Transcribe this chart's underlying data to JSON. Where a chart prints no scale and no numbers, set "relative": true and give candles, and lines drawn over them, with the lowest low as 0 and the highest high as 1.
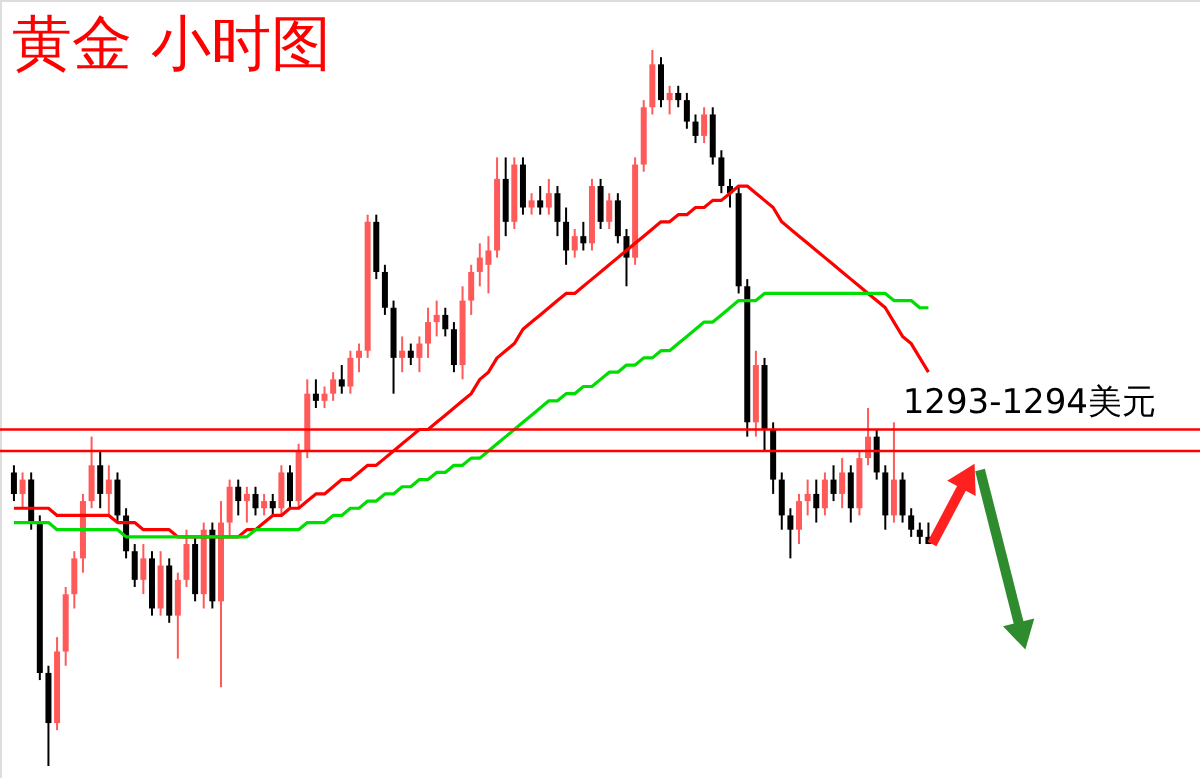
{
  "chart_data": {
    "type": "candlestick",
    "title": "黄金  小时图",
    "relative": true,
    "categories": [
      null,
      null,
      null,
      null,
      null,
      null,
      null,
      null,
      null,
      null,
      null,
      null,
      null,
      null,
      null,
      null,
      null,
      null,
      null,
      null,
      null,
      null,
      null,
      null,
      null,
      null,
      null,
      null,
      null,
      null,
      null,
      null,
      null,
      null,
      null,
      null,
      null,
      null,
      null,
      null,
      null,
      null,
      null,
      null,
      null,
      null,
      null,
      null,
      null,
      null,
      null,
      null,
      null,
      null,
      null,
      null,
      null,
      null,
      null,
      null,
      null,
      null,
      null,
      null,
      null,
      null,
      null,
      null,
      null,
      null,
      null,
      null,
      null,
      null,
      null,
      null,
      null,
      null,
      null,
      null,
      null,
      null,
      null,
      null,
      null,
      null,
      null,
      null,
      null,
      null,
      null,
      null,
      null,
      null,
      null,
      null,
      null,
      null,
      null,
      null,
      null,
      null,
      null,
      null,
      null,
      null,
      null
    ],
    "ohlc": [
      [
        0.41,
        0.42,
        0.37,
        0.38
      ],
      [
        0.38,
        0.41,
        0.36,
        0.4
      ],
      [
        0.4,
        0.41,
        0.33,
        0.34
      ],
      [
        0.34,
        0.35,
        0.12,
        0.13
      ],
      [
        0.13,
        0.14,
        0.0,
        0.06
      ],
      [
        0.06,
        0.18,
        0.05,
        0.16
      ],
      [
        0.16,
        0.25,
        0.14,
        0.24
      ],
      [
        0.24,
        0.3,
        0.22,
        0.29
      ],
      [
        0.29,
        0.38,
        0.27,
        0.37
      ],
      [
        0.37,
        0.46,
        0.36,
        0.42
      ],
      [
        0.42,
        0.44,
        0.36,
        0.38
      ],
      [
        0.38,
        0.42,
        0.35,
        0.4
      ],
      [
        0.4,
        0.41,
        0.34,
        0.35
      ],
      [
        0.35,
        0.36,
        0.29,
        0.3
      ],
      [
        0.3,
        0.31,
        0.25,
        0.26
      ],
      [
        0.26,
        0.31,
        0.24,
        0.29
      ],
      [
        0.29,
        0.3,
        0.21,
        0.22
      ],
      [
        0.22,
        0.3,
        0.21,
        0.28
      ],
      [
        0.28,
        0.29,
        0.2,
        0.21
      ],
      [
        0.21,
        0.27,
        0.15,
        0.26
      ],
      [
        0.26,
        0.33,
        0.25,
        0.31
      ],
      [
        0.31,
        0.32,
        0.23,
        0.24
      ],
      [
        0.24,
        0.34,
        0.22,
        0.33
      ],
      [
        0.33,
        0.34,
        0.22,
        0.23
      ],
      [
        0.23,
        0.37,
        0.11,
        0.34
      ],
      [
        0.34,
        0.4,
        0.32,
        0.39
      ],
      [
        0.39,
        0.4,
        0.35,
        0.37
      ],
      [
        0.37,
        0.39,
        0.34,
        0.38
      ],
      [
        0.38,
        0.39,
        0.35,
        0.36
      ],
      [
        0.36,
        0.38,
        0.35,
        0.37
      ],
      [
        0.37,
        0.38,
        0.35,
        0.36
      ],
      [
        0.36,
        0.42,
        0.35,
        0.41
      ],
      [
        0.41,
        0.42,
        0.36,
        0.37
      ],
      [
        0.37,
        0.45,
        0.36,
        0.44
      ],
      [
        0.44,
        0.54,
        0.43,
        0.52
      ],
      [
        0.52,
        0.54,
        0.5,
        0.51
      ],
      [
        0.51,
        0.53,
        0.5,
        0.52
      ],
      [
        0.52,
        0.55,
        0.51,
        0.54
      ],
      [
        0.54,
        0.56,
        0.52,
        0.53
      ],
      [
        0.53,
        0.58,
        0.52,
        0.57
      ],
      [
        0.57,
        0.59,
        0.55,
        0.58
      ],
      [
        0.58,
        0.77,
        0.57,
        0.76
      ],
      [
        0.76,
        0.77,
        0.68,
        0.69
      ],
      [
        0.69,
        0.7,
        0.63,
        0.64
      ],
      [
        0.64,
        0.65,
        0.52,
        0.57
      ],
      [
        0.57,
        0.6,
        0.55,
        0.58
      ],
      [
        0.58,
        0.59,
        0.56,
        0.57
      ],
      [
        0.57,
        0.6,
        0.55,
        0.59
      ],
      [
        0.59,
        0.64,
        0.57,
        0.62
      ],
      [
        0.62,
        0.65,
        0.6,
        0.63
      ],
      [
        0.63,
        0.64,
        0.6,
        0.61
      ],
      [
        0.61,
        0.62,
        0.55,
        0.56
      ],
      [
        0.56,
        0.67,
        0.54,
        0.65
      ],
      [
        0.65,
        0.7,
        0.63,
        0.69
      ],
      [
        0.69,
        0.73,
        0.67,
        0.71
      ],
      [
        0.7,
        0.74,
        0.66,
        0.72
      ],
      [
        0.72,
        0.85,
        0.71,
        0.82
      ],
      [
        0.82,
        0.85,
        0.74,
        0.76
      ],
      [
        0.76,
        0.85,
        0.75,
        0.84
      ],
      [
        0.84,
        0.85,
        0.77,
        0.78
      ],
      [
        0.78,
        0.8,
        0.77,
        0.79
      ],
      [
        0.79,
        0.81,
        0.77,
        0.78
      ],
      [
        0.78,
        0.82,
        0.77,
        0.8
      ],
      [
        0.8,
        0.81,
        0.74,
        0.76
      ],
      [
        0.76,
        0.78,
        0.7,
        0.72
      ],
      [
        0.72,
        0.75,
        0.71,
        0.74
      ],
      [
        0.74,
        0.76,
        0.72,
        0.73
      ],
      [
        0.73,
        0.82,
        0.72,
        0.81
      ],
      [
        0.81,
        0.82,
        0.75,
        0.76
      ],
      [
        0.76,
        0.8,
        0.75,
        0.79
      ],
      [
        0.79,
        0.8,
        0.73,
        0.74
      ],
      [
        0.74,
        0.75,
        0.67,
        0.71
      ],
      [
        0.71,
        0.85,
        0.7,
        0.84
      ],
      [
        0.84,
        0.93,
        0.83,
        0.92
      ],
      [
        0.92,
        1.0,
        0.91,
        0.98
      ],
      [
        0.98,
        0.99,
        0.92,
        0.93
      ],
      [
        0.93,
        0.95,
        0.91,
        0.94
      ],
      [
        0.94,
        0.95,
        0.92,
        0.93
      ],
      [
        0.93,
        0.94,
        0.89,
        0.9
      ],
      [
        0.9,
        0.91,
        0.87,
        0.88
      ],
      [
        0.88,
        0.92,
        0.87,
        0.91
      ],
      [
        0.91,
        0.92,
        0.84,
        0.85
      ],
      [
        0.85,
        0.86,
        0.8,
        0.81
      ],
      [
        0.81,
        0.82,
        0.78,
        0.8
      ],
      [
        0.8,
        0.81,
        0.66,
        0.67
      ],
      [
        0.67,
        0.68,
        0.46,
        0.48
      ],
      [
        0.48,
        0.58,
        0.46,
        0.56
      ],
      [
        0.56,
        0.57,
        0.44,
        0.47
      ],
      [
        0.47,
        0.48,
        0.38,
        0.4
      ],
      [
        0.4,
        0.41,
        0.33,
        0.35
      ],
      [
        0.35,
        0.36,
        0.29,
        0.33
      ],
      [
        0.33,
        0.38,
        0.31,
        0.37
      ],
      [
        0.37,
        0.4,
        0.35,
        0.38
      ],
      [
        0.38,
        0.4,
        0.34,
        0.36
      ],
      [
        0.36,
        0.41,
        0.35,
        0.4
      ],
      [
        0.4,
        0.42,
        0.37,
        0.38
      ],
      [
        0.38,
        0.43,
        0.36,
        0.41
      ],
      [
        0.41,
        0.42,
        0.34,
        0.36
      ],
      [
        0.36,
        0.44,
        0.35,
        0.43
      ],
      [
        0.43,
        0.5,
        0.42,
        0.46
      ],
      [
        0.46,
        0.47,
        0.4,
        0.41
      ],
      [
        0.41,
        0.42,
        0.33,
        0.35
      ],
      [
        0.35,
        0.48,
        0.34,
        0.4
      ],
      [
        0.4,
        0.41,
        0.34,
        0.35
      ],
      [
        0.35,
        0.36,
        0.32,
        0.33
      ],
      [
        0.33,
        0.34,
        0.31,
        0.32
      ],
      [
        0.32,
        0.34,
        0.31,
        0.31
      ]
    ],
    "colors": [
      "#000000",
      "#ff5a5a",
      "#000000",
      "#000000",
      "#000000",
      "#ff5a5a",
      "#ff5a5a",
      "#ff5a5a",
      "#ff5a5a",
      "#ff5a5a",
      "#000000",
      "#ff5a5a",
      "#000000",
      "#000000",
      "#000000",
      "#ff5a5a",
      "#000000",
      "#ff5a5a",
      "#000000",
      "#ff5a5a",
      "#ff5a5a",
      "#000000",
      "#ff5a5a",
      "#000000",
      "#ff5a5a",
      "#ff5a5a",
      "#000000",
      "#ff5a5a",
      "#000000",
      "#ff5a5a",
      "#000000",
      "#ff5a5a",
      "#000000",
      "#ff5a5a",
      "#ff5a5a",
      "#000000",
      "#ff5a5a",
      "#ff5a5a",
      "#000000",
      "#ff5a5a",
      "#ff5a5a",
      "#ff5a5a",
      "#000000",
      "#000000",
      "#000000",
      "#ff5a5a",
      "#000000",
      "#ff5a5a",
      "#ff5a5a",
      "#ff5a5a",
      "#000000",
      "#000000",
      "#ff5a5a",
      "#ff5a5a",
      "#ff5a5a",
      "#ff5a5a",
      "#ff5a5a",
      "#000000",
      "#ff5a5a",
      "#000000",
      "#ff5a5a",
      "#000000",
      "#ff5a5a",
      "#000000",
      "#000000",
      "#ff5a5a",
      "#000000",
      "#ff5a5a",
      "#000000",
      "#ff5a5a",
      "#000000",
      "#000000",
      "#ff5a5a",
      "#ff5a5a",
      "#ff5a5a",
      "#000000",
      "#ff5a5a",
      "#000000",
      "#000000",
      "#000000",
      "#ff5a5a",
      "#000000",
      "#000000",
      "#000000",
      "#000000",
      "#000000",
      "#ff5a5a",
      "#000000",
      "#000000",
      "#000000",
      "#000000",
      "#ff5a5a",
      "#ff5a5a",
      "#000000",
      "#ff5a5a",
      "#000000",
      "#ff5a5a",
      "#000000",
      "#ff5a5a",
      "#ff5a5a",
      "#000000",
      "#000000",
      "#ff5a5a",
      "#000000",
      "#000000",
      "#000000",
      "#000000"
    ],
    "series": [
      {
        "type": "line",
        "color": "#ff0000",
        "values": [
          0.36,
          0.36,
          0.36,
          0.36,
          0.36,
          0.35,
          0.35,
          0.35,
          0.35,
          0.35,
          0.35,
          0.35,
          0.34,
          0.34,
          0.34,
          0.33,
          0.33,
          0.33,
          0.33,
          0.32,
          0.32,
          0.32,
          0.32,
          0.32,
          0.32,
          0.32,
          0.32,
          0.33,
          0.33,
          0.34,
          0.35,
          0.35,
          0.36,
          0.36,
          0.37,
          0.38,
          0.38,
          0.39,
          0.4,
          0.4,
          0.41,
          0.42,
          0.42,
          0.43,
          0.44,
          0.45,
          0.46,
          0.47,
          0.47,
          0.48,
          0.49,
          0.5,
          0.51,
          0.52,
          0.54,
          0.55,
          0.57,
          0.58,
          0.59,
          0.61,
          0.62,
          0.63,
          0.64,
          0.65,
          0.66,
          0.66,
          0.67,
          0.68,
          0.69,
          0.7,
          0.71,
          0.72,
          0.73,
          0.74,
          0.75,
          0.76,
          0.76,
          0.77,
          0.77,
          0.78,
          0.78,
          0.79,
          0.79,
          0.8,
          0.81,
          0.81,
          0.8,
          0.79,
          0.78,
          0.76,
          0.75,
          0.74,
          0.73,
          0.72,
          0.71,
          0.7,
          0.69,
          0.68,
          0.67,
          0.66,
          0.65,
          0.64,
          0.62,
          0.6,
          0.59,
          0.57,
          0.55
        ]
      },
      {
        "type": "line",
        "color": "#00dd00",
        "values": [
          0.34,
          0.34,
          0.34,
          0.34,
          0.34,
          0.33,
          0.33,
          0.33,
          0.33,
          0.33,
          0.33,
          0.33,
          0.33,
          0.32,
          0.32,
          0.32,
          0.32,
          0.32,
          0.32,
          0.32,
          0.32,
          0.32,
          0.32,
          0.32,
          0.32,
          0.32,
          0.32,
          0.32,
          0.33,
          0.33,
          0.33,
          0.33,
          0.33,
          0.33,
          0.34,
          0.34,
          0.34,
          0.35,
          0.35,
          0.36,
          0.36,
          0.37,
          0.37,
          0.38,
          0.38,
          0.39,
          0.39,
          0.4,
          0.4,
          0.41,
          0.41,
          0.42,
          0.42,
          0.43,
          0.43,
          0.44,
          0.45,
          0.46,
          0.47,
          0.48,
          0.49,
          0.5,
          0.51,
          0.51,
          0.52,
          0.52,
          0.53,
          0.53,
          0.54,
          0.55,
          0.55,
          0.56,
          0.56,
          0.57,
          0.57,
          0.58,
          0.58,
          0.59,
          0.6,
          0.61,
          0.62,
          0.62,
          0.63,
          0.64,
          0.65,
          0.65,
          0.65,
          0.66,
          0.66,
          0.66,
          0.66,
          0.66,
          0.66,
          0.66,
          0.66,
          0.66,
          0.66,
          0.66,
          0.66,
          0.66,
          0.66,
          0.66,
          0.65,
          0.65,
          0.65,
          0.64,
          0.64
        ]
      }
    ],
    "ref_lines": [
      {
        "axis": "y",
        "value": 0.47,
        "color": "#ff0000"
      },
      {
        "axis": "y",
        "value": 0.44,
        "color": "#ff0000"
      }
    ],
    "annotations": [
      "1293-1294美元"
    ]
  }
}
